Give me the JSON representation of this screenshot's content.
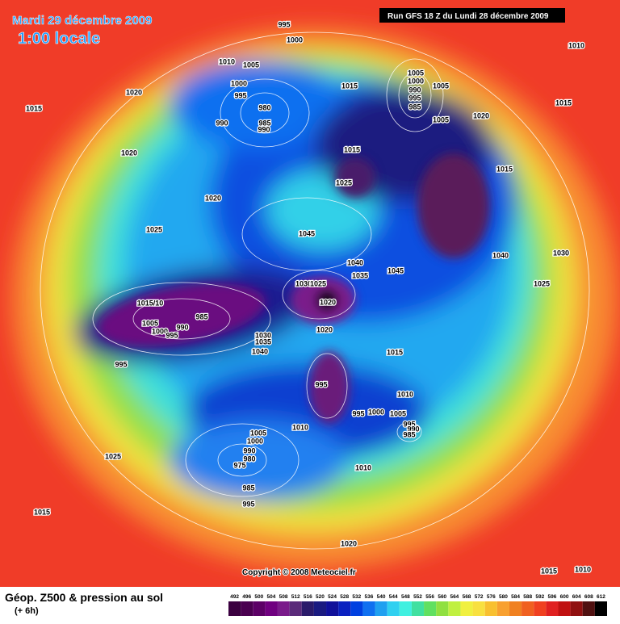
{
  "header": {
    "date": "Mardi 29 décembre 2009",
    "time": "1:00 locale",
    "run": "Run GFS 18 Z du Lundi 28 décembre 2009"
  },
  "copyright": "Copyright © 2008 Meteociel.fr",
  "legend": {
    "title": "Géop. Z500 & pression au sol",
    "lead": "(+ 6h)",
    "scale_labels": [
      492,
      496,
      500,
      504,
      508,
      512,
      516,
      520,
      524,
      528,
      532,
      536,
      540,
      544,
      548,
      552,
      556,
      560,
      564,
      568,
      572,
      576,
      580,
      584,
      588,
      592,
      596,
      600,
      604,
      608,
      612
    ],
    "colors": [
      "#3b0040",
      "#4a0050",
      "#5c0066",
      "#700080",
      "#7a1a8a",
      "#5a2a7a",
      "#2a1a6a",
      "#1a1a80",
      "#10109a",
      "#0a20c0",
      "#0040e0",
      "#1070f0",
      "#20a0f0",
      "#30d0f0",
      "#40f0e0",
      "#40e0a0",
      "#60e060",
      "#90e040",
      "#c0f040",
      "#f0f040",
      "#f8e040",
      "#f8c030",
      "#f8a030",
      "#f08020",
      "#f06020",
      "#f04020",
      "#e02020",
      "#c01010",
      "#901010",
      "#501010",
      "#000000"
    ]
  },
  "map": {
    "isobar_labels": [
      995,
      1000,
      1010,
      1005,
      1000,
      995,
      980,
      985,
      990,
      990,
      1020,
      1015,
      1020,
      1020,
      1025,
      1045,
      1015,
      1005,
      1000,
      1005,
      990,
      995,
      985,
      1005,
      1020,
      1015,
      1025,
      1015,
      1040,
      1030,
      1025,
      1040,
      1035,
      1045,
      1030,
      1025,
      1020,
      "1015/10",
      985,
      1005,
      1000,
      990,
      995,
      1030,
      1035,
      1040,
      1020,
      1015,
      995,
      995,
      1010,
      995,
      1000,
      1005,
      995,
      990,
      985,
      1010,
      1005,
      1000,
      990,
      980,
      975,
      985,
      995,
      1010,
      1025,
      1015,
      1020,
      1015,
      1010,
      1010,
      1015
    ]
  }
}
